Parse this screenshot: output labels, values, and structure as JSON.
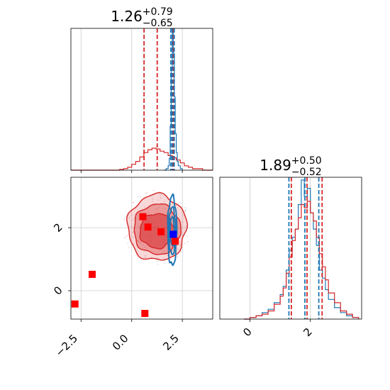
{
  "chart_data": {
    "type": "corner",
    "panels": [
      {
        "id": "hist_param1",
        "type": "step-histogram",
        "title": {
          "value": "1.26",
          "plus": "+0.79",
          "minus": "−0.65"
        },
        "xlim": [
          -3.0,
          4.0
        ],
        "grid": true,
        "series": [
          {
            "color": "#d62728",
            "x": [
              -3.0,
              -2.0,
              -1.0,
              -0.6,
              -0.4,
              -0.2,
              0.0,
              0.2,
              0.4,
              0.6,
              0.8,
              1.0,
              1.2,
              1.4,
              1.6,
              1.8,
              2.0,
              2.2,
              2.4,
              2.6,
              2.8,
              3.0,
              3.5,
              4.0
            ],
            "values": [
              0.0,
              0.0,
              0.0,
              0.005,
              0.01,
              0.02,
              0.04,
              0.06,
              0.09,
              0.12,
              0.14,
              0.15,
              0.145,
              0.13,
              0.12,
              0.1,
              0.085,
              0.07,
              0.05,
              0.03,
              0.02,
              0.01,
              0.0,
              0.0
            ],
            "quantile_lines": [
              0.61,
              1.26,
              2.05
            ]
          },
          {
            "color": "#1f77b4",
            "x": [
              1.6,
              1.7,
              1.8,
              1.85,
              1.9,
              1.95,
              2.0,
              2.05,
              2.1,
              2.15,
              2.2,
              2.25,
              2.3,
              2.4,
              2.5
            ],
            "values": [
              0.0,
              0.01,
              0.03,
              0.08,
              0.3,
              0.7,
              0.95,
              0.8,
              0.5,
              0.25,
              0.12,
              0.06,
              0.03,
              0.01,
              0.0
            ],
            "quantile_lines": [
              1.93,
              2.0,
              2.1
            ]
          }
        ]
      },
      {
        "id": "hist_param2",
        "type": "step-histogram",
        "title": {
          "value": "1.89",
          "plus": "+0.50",
          "minus": "−0.52"
        },
        "xlim": [
          -1.0,
          3.7
        ],
        "xticks": [
          0,
          2
        ],
        "grid": true,
        "series": [
          {
            "color": "#1f77b4",
            "x": [
              -0.2,
              0.0,
              0.2,
              0.4,
              0.6,
              0.8,
              1.0,
              1.1,
              1.2,
              1.3,
              1.4,
              1.5,
              1.6,
              1.7,
              1.8,
              1.9,
              2.0,
              2.1,
              2.2,
              2.3,
              2.4,
              2.5,
              2.6,
              2.8,
              3.0,
              3.2,
              3.4,
              3.6
            ],
            "values": [
              0.0,
              0.01,
              0.02,
              0.04,
              0.06,
              0.1,
              0.15,
              0.2,
              0.3,
              0.42,
              0.5,
              0.55,
              0.7,
              0.85,
              0.75,
              0.8,
              0.65,
              0.55,
              0.45,
              0.3,
              0.25,
              0.18,
              0.12,
              0.07,
              0.04,
              0.02,
              0.01,
              0.0
            ],
            "quantile_lines": [
              1.29,
              1.82,
              2.28
            ]
          },
          {
            "color": "#d62728",
            "x": [
              -0.2,
              0.0,
              0.2,
              0.4,
              0.6,
              0.8,
              1.0,
              1.1,
              1.2,
              1.3,
              1.4,
              1.5,
              1.6,
              1.7,
              1.8,
              1.9,
              2.0,
              2.1,
              2.2,
              2.3,
              2.4,
              2.5,
              2.6,
              2.8,
              3.0,
              3.2,
              3.4,
              3.6
            ],
            "values": [
              0.0,
              0.01,
              0.02,
              0.03,
              0.05,
              0.09,
              0.14,
              0.19,
              0.28,
              0.38,
              0.48,
              0.55,
              0.62,
              0.7,
              0.68,
              0.72,
              0.65,
              0.6,
              0.5,
              0.4,
              0.32,
              0.24,
              0.16,
              0.1,
              0.05,
              0.03,
              0.01,
              0.0
            ],
            "quantile_lines": [
              1.37,
              1.89,
              2.39
            ]
          }
        ]
      },
      {
        "id": "contour_2d",
        "type": "contour",
        "xlim": [
          -3.0,
          4.0
        ],
        "ylim": [
          -0.9,
          3.6
        ],
        "xticks": [
          -2.5,
          0.0,
          2.5
        ],
        "xtick_labels": [
          "−2.5",
          "0.0",
          "2.5"
        ],
        "yticks": [
          0,
          2
        ],
        "grid": true,
        "contours": [
          {
            "color": "#d62728",
            "filled": true,
            "levels": [
              {
                "cx": 1.25,
                "cy": 2.0,
                "rx": 1.45,
                "ry": 1.05,
                "opacity": 0.18
              },
              {
                "cx": 1.25,
                "cy": 1.95,
                "rx": 1.15,
                "ry": 0.8,
                "opacity": 0.35
              },
              {
                "cx": 1.25,
                "cy": 1.9,
                "rx": 0.85,
                "ry": 0.55,
                "opacity": 0.55
              }
            ]
          },
          {
            "color": "#1f77b4",
            "filled": false,
            "levels": [
              {
                "cx": 2.0,
                "cy": 1.9,
                "rx": 0.22,
                "ry": 1.1
              },
              {
                "cx": 2.0,
                "cy": 1.9,
                "rx": 0.16,
                "ry": 0.75
              },
              {
                "cx": 2.0,
                "cy": 1.9,
                "rx": 0.1,
                "ry": 0.45
              }
            ]
          }
        ],
        "points": [
          {
            "x": 0.55,
            "y": 2.35,
            "color": "#ff0000"
          },
          {
            "x": 0.8,
            "y": 2.02,
            "color": "#ff0000"
          },
          {
            "x": 1.45,
            "y": 1.87,
            "color": "#ff0000"
          },
          {
            "x": 2.15,
            "y": 1.57,
            "color": "#ff0000"
          },
          {
            "x": -1.95,
            "y": 0.52,
            "color": "#ff0000"
          },
          {
            "x": -2.8,
            "y": -0.42,
            "color": "#ff0000"
          },
          {
            "x": 0.65,
            "y": -0.72,
            "color": "#ff0000"
          },
          {
            "x": 2.05,
            "y": 1.79,
            "color": "#0000ff"
          }
        ]
      }
    ]
  }
}
